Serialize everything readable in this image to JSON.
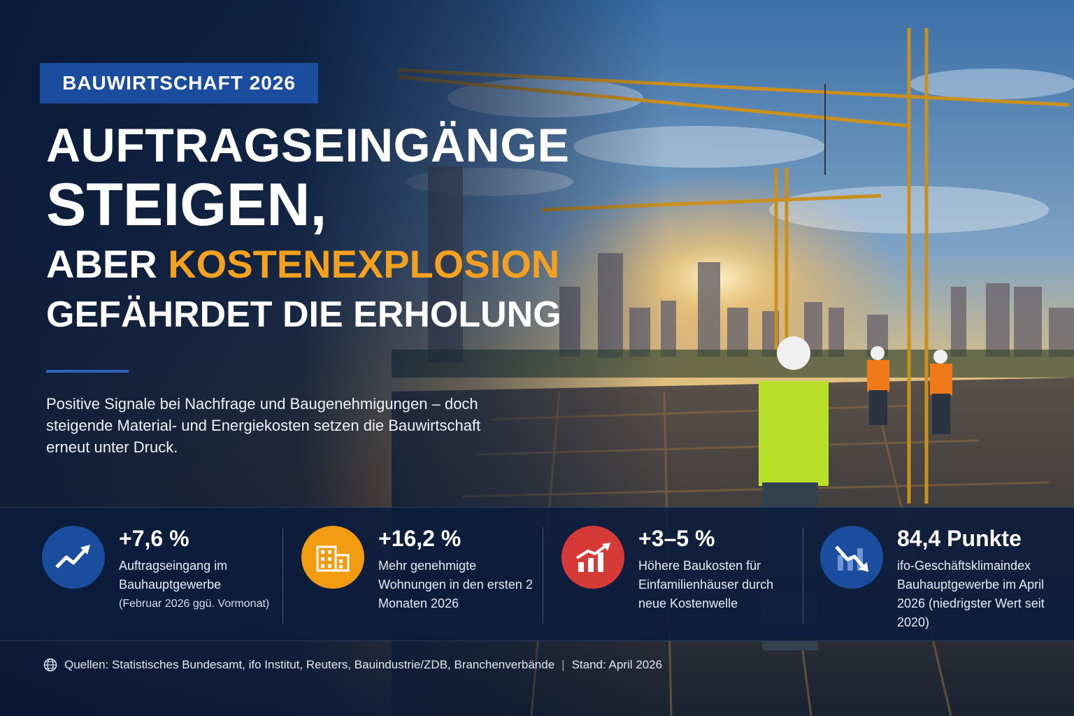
{
  "badge": "BAUWIRTSCHAFT 2026",
  "headline": {
    "line1": "AUFTRAGSEINGÄNGE",
    "line2": "STEIGEN,",
    "line3_prefix": "ABER ",
    "line3_accent": "KOSTENEXPLOSION",
    "line4": "GEFÄHRDET DIE ERHOLUNG"
  },
  "subtitle": "Positive Signale bei Nachfrage und Baugenehmigungen – doch steigende Material- und Energiekosten setzen die Bauwirtschaft erneut unter Druck.",
  "stats": [
    {
      "value": "+7,6 %",
      "desc": "Auftragseingang im Bauhauptgewerbe",
      "note": "(Februar 2026 ggü. Vormonat)",
      "icon": "trend-up-icon",
      "color": "#1a4d9e"
    },
    {
      "value": "+16,2 %",
      "desc": "Mehr genehmigte Wohnungen in den ersten 2 Monaten 2026",
      "icon": "buildings-icon",
      "color": "#f39c12"
    },
    {
      "value": "+3–5 %",
      "desc": "Höhere Baukosten für Einfamilienhäuser durch neue Kostenwelle",
      "icon": "bar-chart-up-icon",
      "color": "#d63a36"
    },
    {
      "value": "84,4 Punkte",
      "desc": "ifo-Geschäftsklimaindex Bauhauptgewerbe im April 2026 (niedrigster Wert seit 2020)",
      "icon": "trend-down-icon",
      "color": "#1a4d9e"
    }
  ],
  "footer": {
    "sources": "Quellen: Statistisches Bundesamt, ifo Institut, Reuters, Bauindustrie/ZDB, Branchenverbände",
    "separator": "|",
    "date": "Stand: April 2026",
    "icon": "globe-icon"
  }
}
